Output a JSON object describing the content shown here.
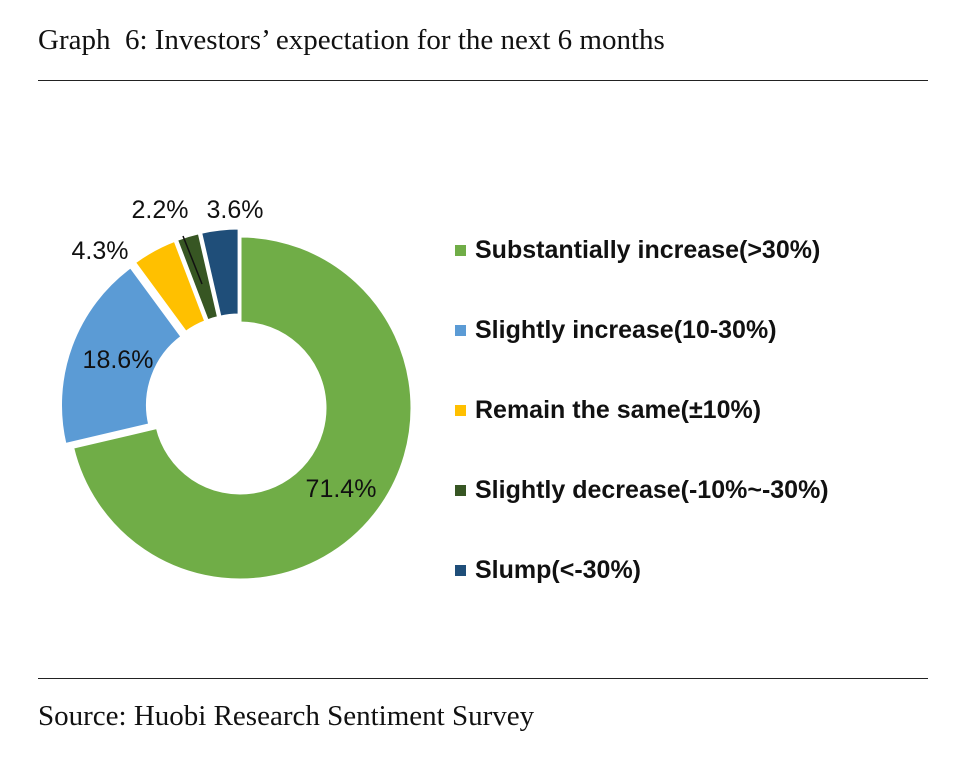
{
  "figure": {
    "title": "Graph  6: Investors’ expectation for the next 6 months",
    "source": "Source: Huobi Research Sentiment Survey"
  },
  "chart_data": {
    "type": "pie",
    "variant": "donut",
    "title": "",
    "categories": [
      "Substantially increase(>30%)",
      "Slightly increase(10-30%)",
      "Remain the same(±10%)",
      "Slightly decrease(-10%~-30%)",
      "Slump(<-30%)"
    ],
    "values": [
      71.4,
      18.6,
      4.3,
      2.2,
      3.6
    ],
    "data_labels": [
      "71.4%",
      "18.6%",
      "4.3%",
      "2.2%",
      "3.6%"
    ],
    "colors": [
      "#70ad47",
      "#5b9bd5",
      "#ffc000",
      "#375623",
      "#1f4e79"
    ],
    "legend_position": "right",
    "start_angle_deg": 0,
    "direction": "clockwise"
  }
}
